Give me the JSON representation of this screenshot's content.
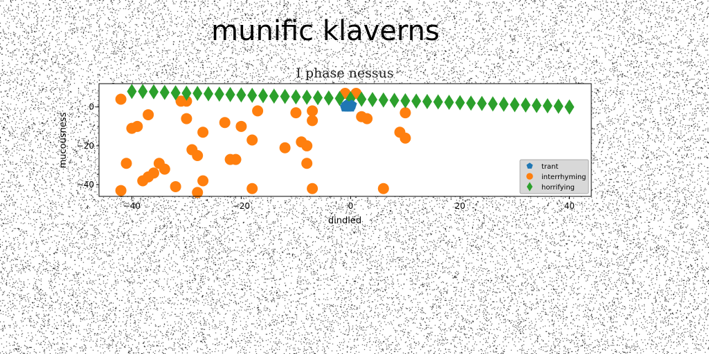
{
  "page": {
    "suptitle": "munific klaverns"
  },
  "colors": {
    "noise": "#000000",
    "legend_bg": "#d8d8d8"
  },
  "chart_data": {
    "type": "scatter",
    "title": "I phase nessus",
    "xlabel": "dindled",
    "ylabel": "mucousness",
    "xlim": [
      -46,
      44
    ],
    "ylim": [
      -46,
      12
    ],
    "xticks": [
      -40,
      -20,
      0,
      20,
      40
    ],
    "yticks": [
      0,
      -20,
      -40
    ],
    "grid": false,
    "legend_placement": "lower-right",
    "series": [
      {
        "name": "trant",
        "marker": "pentagon",
        "color": "#1f77b4",
        "points": [
          [
            -1,
            0
          ],
          [
            -0.5,
            0
          ],
          [
            0,
            0
          ],
          [
            -0.8,
            1
          ],
          [
            0.2,
            1
          ]
        ]
      },
      {
        "name": "interrhyming",
        "marker": "circle",
        "color": "#ff7f0e",
        "points": [
          [
            -42,
            4
          ],
          [
            -42,
            -43
          ],
          [
            -41,
            -29
          ],
          [
            -40,
            -11
          ],
          [
            -39,
            -10
          ],
          [
            -38,
            -38
          ],
          [
            -37,
            -36
          ],
          [
            -37,
            -4
          ],
          [
            -36,
            -34
          ],
          [
            -35,
            -29
          ],
          [
            -34,
            -32
          ],
          [
            -32,
            -41
          ],
          [
            -31,
            3
          ],
          [
            -30,
            3
          ],
          [
            -30,
            -6
          ],
          [
            -29,
            -22
          ],
          [
            -28,
            -25
          ],
          [
            -28,
            -44
          ],
          [
            -27,
            -38
          ],
          [
            -27,
            -13
          ],
          [
            -23,
            -8
          ],
          [
            -22,
            -27
          ],
          [
            -21,
            -27
          ],
          [
            -20,
            -10
          ],
          [
            -18,
            -17
          ],
          [
            -18,
            -42
          ],
          [
            -17,
            -2
          ],
          [
            -12,
            -21
          ],
          [
            -10,
            -3
          ],
          [
            -9,
            -18
          ],
          [
            -8,
            -20
          ],
          [
            -8,
            -29
          ],
          [
            -7,
            -2
          ],
          [
            -7,
            -7
          ],
          [
            -7,
            -42
          ],
          [
            -1,
            7
          ],
          [
            1,
            7
          ],
          [
            2,
            -5
          ],
          [
            3,
            -6
          ],
          [
            6,
            -42
          ],
          [
            9,
            -13
          ],
          [
            10,
            -16
          ],
          [
            10,
            -3
          ]
        ]
      },
      {
        "name": "horrifying",
        "marker": "thin_diamond",
        "color": "#2ca02c",
        "points": [
          [
            -40,
            8
          ],
          [
            -38,
            8
          ],
          [
            -36,
            7.8
          ],
          [
            -34,
            7.5
          ],
          [
            -32,
            7.3
          ],
          [
            -30,
            7.1
          ],
          [
            -28,
            7
          ],
          [
            -26,
            6.8
          ],
          [
            -24,
            6.6
          ],
          [
            -22,
            6.4
          ],
          [
            -20,
            6.2
          ],
          [
            -18,
            6
          ],
          [
            -16,
            5.8
          ],
          [
            -14,
            5.6
          ],
          [
            -12,
            5.4
          ],
          [
            -10,
            5.2
          ],
          [
            -8,
            5
          ],
          [
            -6,
            4.8
          ],
          [
            -4,
            4.6
          ],
          [
            -2,
            4.4
          ],
          [
            0,
            4.2
          ],
          [
            2,
            4
          ],
          [
            4,
            3.8
          ],
          [
            6,
            3.6
          ],
          [
            8,
            3.4
          ],
          [
            10,
            3.2
          ],
          [
            12,
            3
          ],
          [
            14,
            2.8
          ],
          [
            16,
            2.6
          ],
          [
            18,
            2.4
          ],
          [
            20,
            2.2
          ],
          [
            22,
            2
          ],
          [
            24,
            1.8
          ],
          [
            26,
            1.6
          ],
          [
            28,
            1.4
          ],
          [
            30,
            1.2
          ],
          [
            32,
            1
          ],
          [
            34,
            0.8
          ],
          [
            36,
            0.6
          ],
          [
            38,
            0.4
          ],
          [
            40,
            0
          ]
        ]
      }
    ]
  }
}
